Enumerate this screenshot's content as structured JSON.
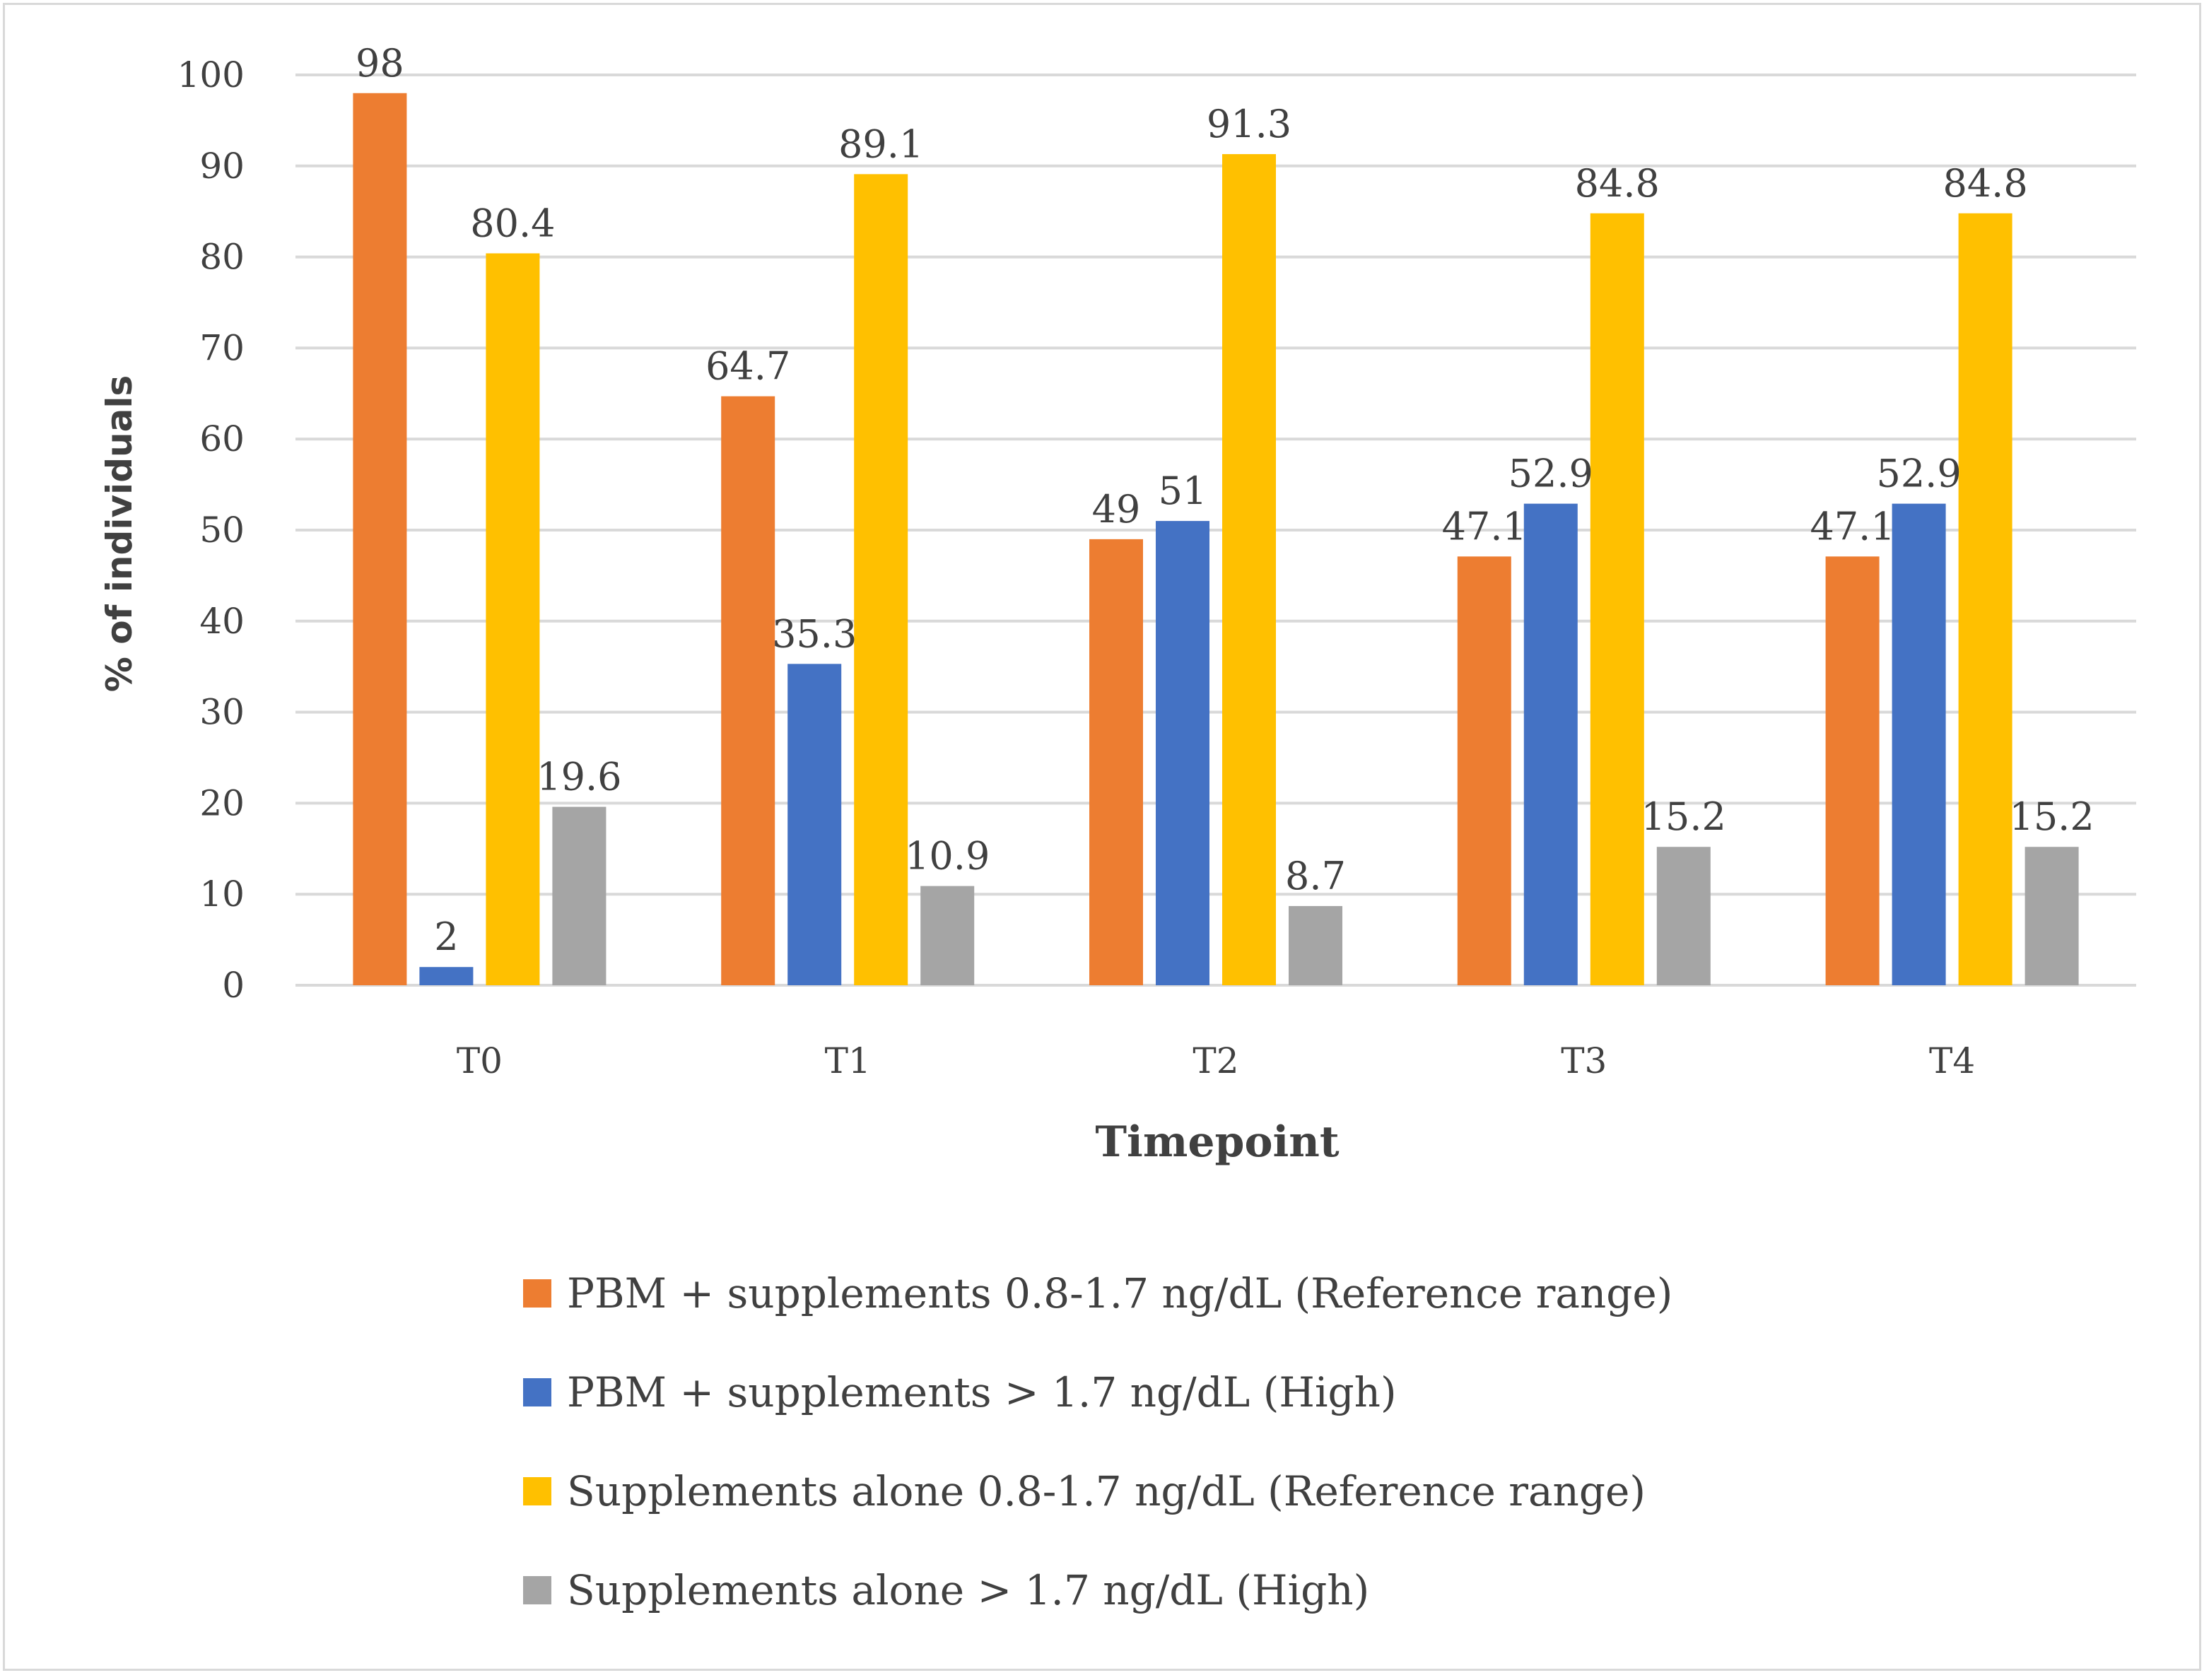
{
  "chart_data": {
    "type": "bar",
    "title": "",
    "xlabel": "Timepoint",
    "ylabel": "% of individuals",
    "ylim": [
      0,
      100
    ],
    "yticks": [
      0,
      10,
      20,
      30,
      40,
      50,
      60,
      70,
      80,
      90,
      100
    ],
    "grid": true,
    "legend_position": "bottom",
    "categories": [
      "T0",
      "T1",
      "T2",
      "T3",
      "T4"
    ],
    "series": [
      {
        "name": "PBM + supplements 0.8-1.7 ng/dL (Reference range)",
        "color": "#ED7D31",
        "values": [
          98,
          64.7,
          49,
          47.1,
          47.1
        ],
        "labels": [
          "98",
          "64.7",
          "49",
          "47.1",
          "47.1"
        ]
      },
      {
        "name": "PBM + supplements > 1.7 ng/dL (High)",
        "color": "#4472C4",
        "values": [
          2,
          35.3,
          51,
          52.9,
          52.9
        ],
        "labels": [
          "2",
          "35.3",
          "51",
          "52.9",
          "52.9"
        ]
      },
      {
        "name": "Supplements alone 0.8-1.7 ng/dL (Reference range)",
        "color": "#FFC000",
        "values": [
          80.4,
          89.1,
          91.3,
          84.8,
          84.8
        ],
        "labels": [
          "80.4",
          "89.1",
          "91.3",
          "84.8",
          "84.8"
        ]
      },
      {
        "name": "Supplements alone > 1.7 ng/dL (High)",
        "color": "#A5A5A5",
        "values": [
          19.6,
          10.9,
          8.7,
          15.2,
          15.2
        ],
        "labels": [
          "19.6",
          "10.9",
          "8.7",
          "15.2",
          "15.2"
        ]
      }
    ]
  },
  "colors": {
    "gridline": "#d9d9d9",
    "text": "#404040",
    "border": "#d9d9d9"
  }
}
